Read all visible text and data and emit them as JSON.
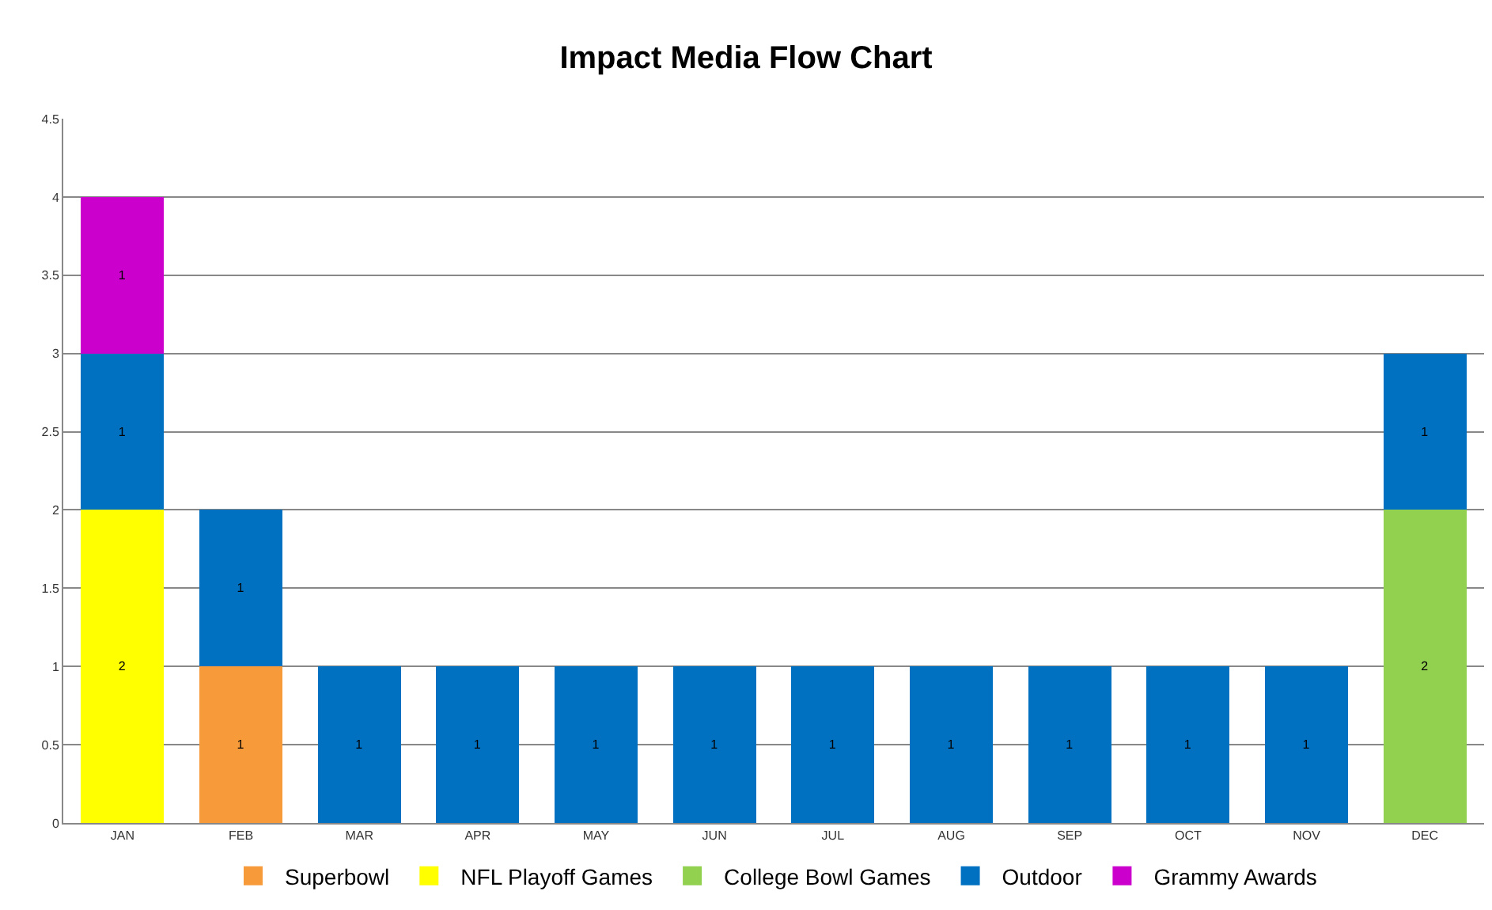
{
  "chart_data": {
    "type": "bar",
    "title": "Impact Media Flow Chart",
    "stacked": true,
    "data_labels": true,
    "grid": "y",
    "legend": "bottom",
    "categories": [
      "JAN",
      "FEB",
      "MAR",
      "APR",
      "MAY",
      "JUN",
      "JUL",
      "AUG",
      "SEP",
      "OCT",
      "NOV",
      "DEC"
    ],
    "ylim": [
      0,
      4.5
    ],
    "yticks": [
      0,
      0.5,
      1,
      1.5,
      2,
      2.5,
      3,
      3.5,
      4,
      4.5
    ],
    "series": [
      {
        "name": "Superbowl",
        "color": "#f79a3a",
        "values": [
          null,
          1,
          null,
          null,
          null,
          null,
          null,
          null,
          null,
          null,
          null,
          null
        ]
      },
      {
        "name": "NFL Playoff Games",
        "color": "#ffff00",
        "values": [
          2,
          null,
          null,
          null,
          null,
          null,
          null,
          null,
          null,
          null,
          null,
          null
        ]
      },
      {
        "name": "College Bowl Games",
        "color": "#92d050",
        "values": [
          null,
          null,
          null,
          null,
          null,
          null,
          null,
          null,
          null,
          null,
          null,
          2
        ]
      },
      {
        "name": "Outdoor",
        "color": "#0070c0",
        "values": [
          1,
          1,
          1,
          1,
          1,
          1,
          1,
          1,
          1,
          1,
          1,
          1
        ]
      },
      {
        "name": "Grammy Awards",
        "color": "#cc00cc",
        "values": [
          1,
          null,
          null,
          null,
          null,
          null,
          null,
          null,
          null,
          null,
          null,
          null
        ]
      }
    ]
  }
}
